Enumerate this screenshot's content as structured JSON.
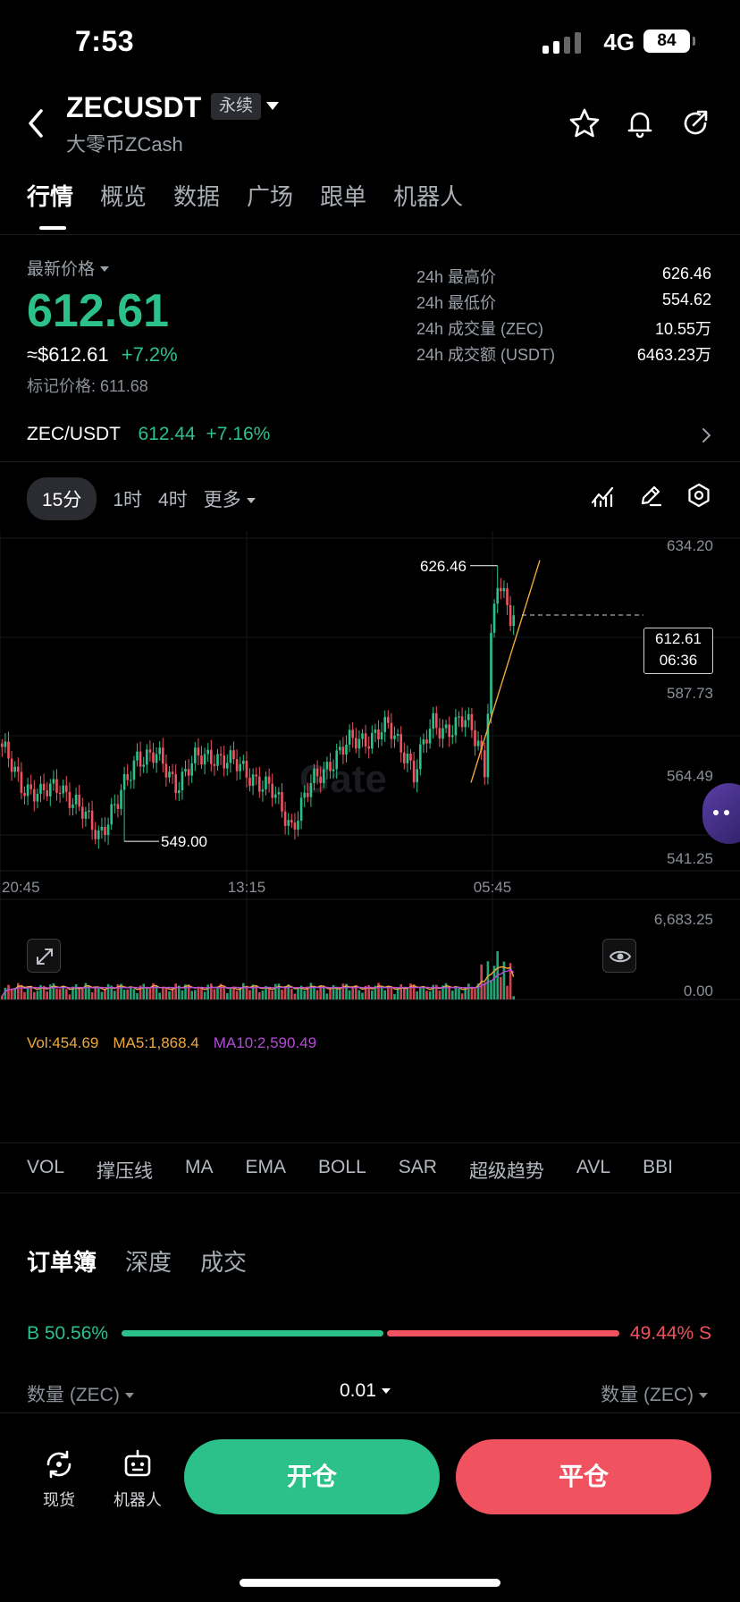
{
  "status": {
    "time": "7:53",
    "network": "4G",
    "battery": "84"
  },
  "header": {
    "symbol": "ZECUSDT",
    "badge": "永续",
    "subtitle": "大零币ZCash"
  },
  "tabs": [
    "行情",
    "概览",
    "数据",
    "广场",
    "跟单",
    "机器人"
  ],
  "price": {
    "label": "最新价格",
    "last": "612.61",
    "approx": "≈$612.61",
    "change": "+7.2%",
    "mark": "标记价格: 611.68"
  },
  "stats": [
    {
      "k": "24h 最高价",
      "v": "626.46"
    },
    {
      "k": "24h 最低价",
      "v": "554.62"
    },
    {
      "k": "24h 成交量 (ZEC)",
      "v": "10.55万"
    },
    {
      "k": "24h 成交额 (USDT)",
      "v": "6463.23万"
    }
  ],
  "spot_pair": {
    "name": "ZEC/USDT",
    "price": "612.44",
    "change": "+7.16%"
  },
  "intervals": [
    "15分",
    "1时",
    "4时",
    "更多"
  ],
  "colors": {
    "up": "#2cc08a",
    "down": "#f0525f",
    "ma5": "#f0a93c",
    "ma10": "#b44bd8"
  },
  "chart_data": {
    "type": "candlestick",
    "y_axis": [
      "634.20",
      "587.73",
      "564.49",
      "541.25"
    ],
    "ylim": [
      541.25,
      634.2
    ],
    "x_axis": [
      "20:45",
      "13:15",
      "05:45"
    ],
    "high_label": "626.46",
    "low_label": "549.00",
    "current": {
      "price": "612.61",
      "countdown": "06:36"
    },
    "watermark": "Gate",
    "volume": {
      "legend": {
        "vol": "Vol:454.69",
        "ma5": "MA5:1,868.4",
        "ma10": "MA10:2,590.49"
      },
      "axis": [
        "6,683.25",
        "0.00"
      ],
      "ylim": [
        0,
        6683.25
      ]
    },
    "anchors": [
      [
        0,
        574
      ],
      [
        6,
        566
      ],
      [
        12,
        561
      ],
      [
        18,
        566
      ],
      [
        24,
        557
      ],
      [
        30,
        552
      ],
      [
        36,
        559
      ],
      [
        42,
        574
      ],
      [
        48,
        572
      ],
      [
        54,
        566
      ],
      [
        60,
        571
      ],
      [
        66,
        574
      ],
      [
        72,
        570
      ],
      [
        78,
        568
      ],
      [
        84,
        562
      ],
      [
        90,
        554
      ],
      [
        96,
        564
      ],
      [
        102,
        572
      ],
      [
        108,
        576
      ],
      [
        114,
        579
      ],
      [
        120,
        580
      ],
      [
        126,
        574
      ],
      [
        128,
        568
      ],
      [
        134,
        582
      ],
      [
        140,
        581
      ],
      [
        144,
        582
      ],
      [
        148,
        578
      ],
      [
        150,
        570
      ],
      [
        152,
        606
      ],
      [
        154,
        621
      ],
      [
        156,
        616
      ],
      [
        158,
        612
      ],
      [
        159,
        613
      ]
    ]
  },
  "indicators": [
    "VOL",
    "撑压线",
    "MA",
    "EMA",
    "BOLL",
    "SAR",
    "超级趋势",
    "AVL",
    "BBI"
  ],
  "orderbook": {
    "tabs": [
      "订单簿",
      "深度",
      "成交"
    ],
    "buy_ratio": "B 50.56%",
    "sell_ratio": "49.44% S",
    "buy_fraction": 0.5056,
    "qty_left": "数量 (ZEC)",
    "precision": "0.01",
    "qty_right": "数量 (ZEC)"
  },
  "bottom": {
    "spot": "现货",
    "bot": "机器人",
    "open": "开仓",
    "close": "平仓"
  }
}
